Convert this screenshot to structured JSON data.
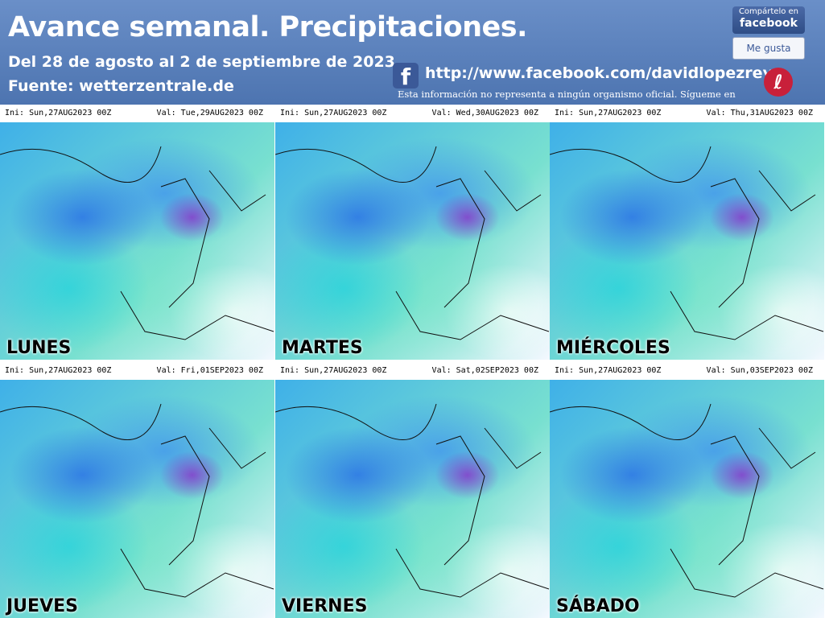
{
  "header": {
    "title": "Avance semanal. Precipitaciones.",
    "subtitle": "Del 28 de agosto al 2 de septiembre de 2023",
    "source": "Fuente: wetterzentrale.de",
    "share_line1": "Compártelo en",
    "share_line2": "facebook",
    "like": "Me gusta",
    "url": "http://www.facebook.com/davidlopezrey",
    "disclaimer": "Esta información no representa a ningún organismo oficial. Sígueme en"
  },
  "panels": [
    {
      "ini": "Ini: Sun,27AUG2023 00Z",
      "val": "Val: Tue,29AUG2023 00Z",
      "day": "LUNES"
    },
    {
      "ini": "Ini: Sun,27AUG2023 00Z",
      "val": "Val: Wed,30AUG2023 00Z",
      "day": "MARTES"
    },
    {
      "ini": "Ini: Sun,27AUG2023 00Z",
      "val": "Val: Thu,31AUG2023 00Z",
      "day": "MIÉRCOLES"
    },
    {
      "ini": "Ini: Sun,27AUG2023 00Z",
      "val": "Val: Fri,01SEP2023 00Z",
      "day": "JUEVES"
    },
    {
      "ini": "Ini: Sun,27AUG2023 00Z",
      "val": "Val: Sat,02SEP2023 00Z",
      "day": "VIERNES"
    },
    {
      "ini": "Ini: Sun,27AUG2023 00Z",
      "val": "Val: Sun,03SEP2023 00Z",
      "day": "SÁBADO"
    }
  ]
}
